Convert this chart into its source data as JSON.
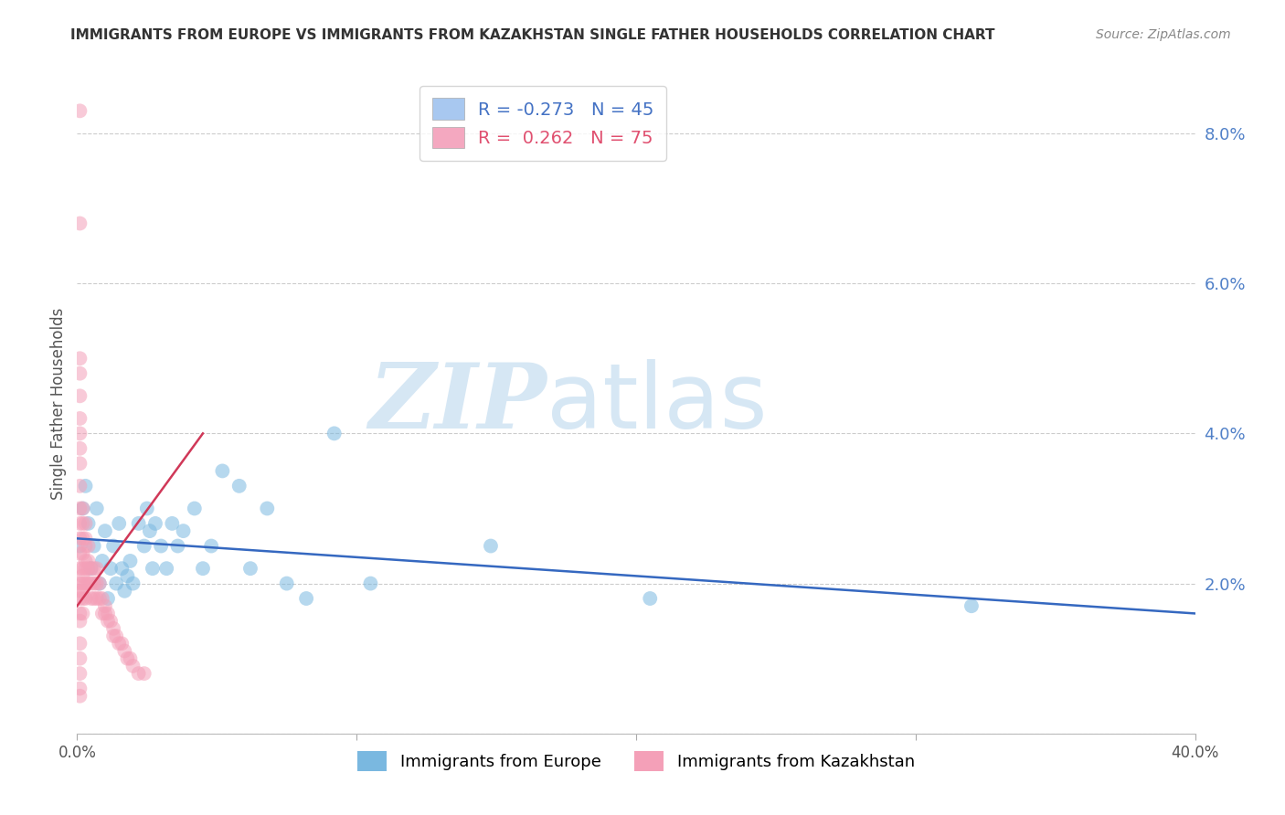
{
  "title": "IMMIGRANTS FROM EUROPE VS IMMIGRANTS FROM KAZAKHSTAN SINGLE FATHER HOUSEHOLDS CORRELATION CHART",
  "source": "Source: ZipAtlas.com",
  "ylabel": "Single Father Households",
  "right_yticklabels": [
    "",
    "2.0%",
    "4.0%",
    "6.0%",
    "8.0%"
  ],
  "right_ytick_vals": [
    0.0,
    0.02,
    0.04,
    0.06,
    0.08
  ],
  "watermark_zip": "ZIP",
  "watermark_atlas": "atlas",
  "legend_line1": "R = -0.273   N = 45",
  "legend_line2": "R =  0.262   N = 75",
  "legend_color1": "#a8c8f0",
  "legend_color2": "#f4a8c0",
  "legend_text_color1": "#4472c4",
  "legend_text_color2": "#e05070",
  "blue_color": "#7ab8e0",
  "pink_color": "#f4a0b8",
  "blue_line_color": "#3568c0",
  "pink_line_color": "#d03858",
  "background_color": "#ffffff",
  "grid_color": "#cccccc",
  "title_color": "#333333",
  "right_axis_color": "#5080c8",
  "source_color": "#888888",
  "xmin": 0.0,
  "xmax": 0.4,
  "ymin": 0.0,
  "ymax": 0.088,
  "blue_scatter_x": [
    0.001,
    0.002,
    0.003,
    0.004,
    0.005,
    0.006,
    0.007,
    0.008,
    0.009,
    0.01,
    0.011,
    0.012,
    0.013,
    0.014,
    0.015,
    0.016,
    0.017,
    0.018,
    0.019,
    0.02,
    0.022,
    0.024,
    0.025,
    0.026,
    0.027,
    0.028,
    0.03,
    0.032,
    0.034,
    0.036,
    0.038,
    0.042,
    0.045,
    0.048,
    0.052,
    0.058,
    0.062,
    0.068,
    0.075,
    0.082,
    0.092,
    0.105,
    0.148,
    0.205,
    0.32
  ],
  "blue_scatter_y": [
    0.025,
    0.03,
    0.033,
    0.028,
    0.022,
    0.025,
    0.03,
    0.02,
    0.023,
    0.027,
    0.018,
    0.022,
    0.025,
    0.02,
    0.028,
    0.022,
    0.019,
    0.021,
    0.023,
    0.02,
    0.028,
    0.025,
    0.03,
    0.027,
    0.022,
    0.028,
    0.025,
    0.022,
    0.028,
    0.025,
    0.027,
    0.03,
    0.022,
    0.025,
    0.035,
    0.033,
    0.022,
    0.03,
    0.02,
    0.018,
    0.04,
    0.02,
    0.025,
    0.018,
    0.017
  ],
  "pink_scatter_x": [
    0.001,
    0.001,
    0.001,
    0.001,
    0.001,
    0.001,
    0.001,
    0.001,
    0.001,
    0.001,
    0.001,
    0.001,
    0.001,
    0.001,
    0.001,
    0.001,
    0.001,
    0.001,
    0.001,
    0.001,
    0.002,
    0.002,
    0.002,
    0.002,
    0.002,
    0.002,
    0.002,
    0.002,
    0.002,
    0.002,
    0.003,
    0.003,
    0.003,
    0.003,
    0.003,
    0.003,
    0.003,
    0.004,
    0.004,
    0.004,
    0.004,
    0.005,
    0.005,
    0.005,
    0.006,
    0.006,
    0.006,
    0.007,
    0.007,
    0.007,
    0.008,
    0.008,
    0.009,
    0.009,
    0.01,
    0.01,
    0.011,
    0.011,
    0.012,
    0.013,
    0.013,
    0.014,
    0.015,
    0.016,
    0.017,
    0.018,
    0.019,
    0.02,
    0.022,
    0.024,
    0.001,
    0.001,
    0.001,
    0.001,
    0.001
  ],
  "pink_scatter_y": [
    0.083,
    0.068,
    0.05,
    0.048,
    0.045,
    0.042,
    0.04,
    0.038,
    0.036,
    0.033,
    0.03,
    0.028,
    0.026,
    0.024,
    0.022,
    0.02,
    0.019,
    0.018,
    0.016,
    0.015,
    0.03,
    0.028,
    0.026,
    0.024,
    0.022,
    0.021,
    0.02,
    0.019,
    0.018,
    0.016,
    0.028,
    0.026,
    0.025,
    0.023,
    0.022,
    0.02,
    0.018,
    0.025,
    0.023,
    0.022,
    0.02,
    0.022,
    0.02,
    0.018,
    0.022,
    0.02,
    0.018,
    0.022,
    0.02,
    0.018,
    0.02,
    0.018,
    0.018,
    0.016,
    0.017,
    0.016,
    0.016,
    0.015,
    0.015,
    0.014,
    0.013,
    0.013,
    0.012,
    0.012,
    0.011,
    0.01,
    0.01,
    0.009,
    0.008,
    0.008,
    0.012,
    0.01,
    0.008,
    0.006,
    0.005
  ],
  "blue_trend_x": [
    0.0,
    0.4
  ],
  "blue_trend_y": [
    0.026,
    0.016
  ],
  "pink_trend_x": [
    0.0,
    0.045
  ],
  "pink_trend_y": [
    0.017,
    0.04
  ],
  "bottom_legend_label1": "Immigrants from Europe",
  "bottom_legend_label2": "Immigrants from Kazakhstan"
}
